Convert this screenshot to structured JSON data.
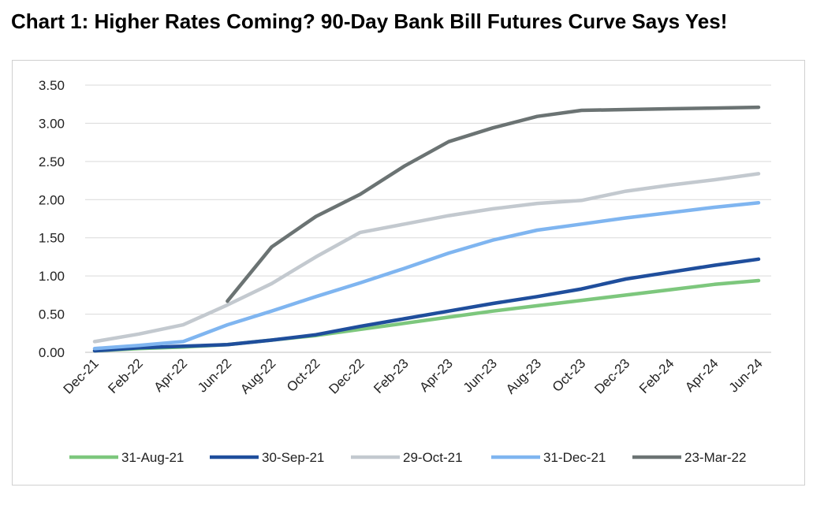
{
  "title": "Chart 1: Higher Rates Coming? 90-Day Bank Bill Futures Curve Says Yes!",
  "chart_data": {
    "type": "line",
    "categories": [
      "Dec-21",
      "Feb-22",
      "Apr-22",
      "Jun-22",
      "Aug-22",
      "Oct-22",
      "Dec-22",
      "Feb-23",
      "Apr-23",
      "Jun-23",
      "Aug-23",
      "Oct-23",
      "Dec-23",
      "Feb-24",
      "Apr-24",
      "Jun-24"
    ],
    "ylim": [
      0,
      3.5
    ],
    "yticks": [
      "0.00",
      "0.50",
      "1.00",
      "1.50",
      "2.00",
      "2.50",
      "3.00",
      "3.50"
    ],
    "grid": true,
    "legend_position": "bottom",
    "series": [
      {
        "name": "31-Aug-21",
        "color": "#7dc77d",
        "values": [
          0.02,
          0.05,
          0.07,
          0.1,
          0.16,
          0.22,
          0.3,
          0.38,
          0.46,
          0.54,
          0.61,
          0.68,
          0.75,
          0.82,
          0.89,
          0.94
        ]
      },
      {
        "name": "30-Sep-21",
        "color": "#1f4e9c",
        "values": [
          0.02,
          0.06,
          0.08,
          0.1,
          0.16,
          0.23,
          0.34,
          0.44,
          0.54,
          0.64,
          0.73,
          0.83,
          0.96,
          1.05,
          1.14,
          1.22
        ]
      },
      {
        "name": "29-Oct-21",
        "color": "#c3c9cf",
        "values": [
          0.14,
          0.24,
          0.36,
          0.62,
          0.9,
          1.25,
          1.57,
          1.68,
          1.79,
          1.88,
          1.95,
          1.99,
          2.11,
          2.19,
          2.26,
          2.34
        ]
      },
      {
        "name": "31-Dec-21",
        "color": "#7fb5f0",
        "values": [
          0.05,
          0.09,
          0.14,
          0.36,
          0.54,
          0.73,
          0.91,
          1.1,
          1.3,
          1.47,
          1.6,
          1.68,
          1.76,
          1.83,
          1.9,
          1.96
        ]
      },
      {
        "name": "23-Mar-22",
        "color": "#6b7373",
        "values": [
          null,
          null,
          null,
          0.67,
          1.38,
          1.78,
          2.07,
          2.44,
          2.76,
          2.94,
          3.09,
          3.17,
          3.18,
          3.19,
          3.2,
          3.21
        ]
      }
    ]
  }
}
